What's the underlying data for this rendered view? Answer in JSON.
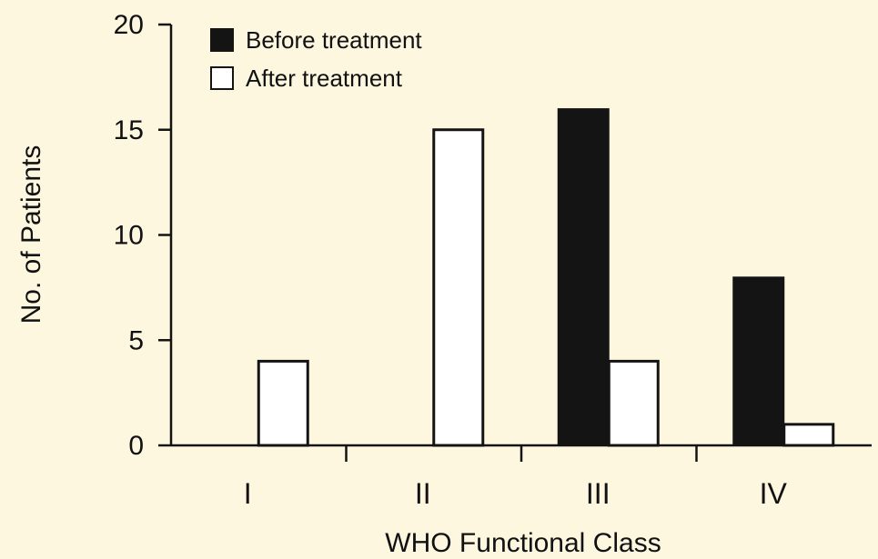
{
  "chart_data": {
    "type": "bar",
    "categories": [
      "I",
      "II",
      "III",
      "IV"
    ],
    "series": [
      {
        "name": "Before treatment",
        "values": [
          0,
          0,
          16,
          8
        ],
        "color": "#141414",
        "fill_style": "solid"
      },
      {
        "name": "After treatment",
        "values": [
          4,
          15,
          4,
          1
        ],
        "color": "#141414",
        "fill_style": "outline"
      }
    ],
    "title": "",
    "xlabel": "WHO Functional Class",
    "ylabel": "No. of Patients",
    "ylim": [
      0,
      20
    ],
    "yticks": [
      0,
      5,
      10,
      15,
      20
    ],
    "grid": false,
    "legend_position": "top-left"
  },
  "colors": {
    "background": "#fdf7e0",
    "ink": "#141414",
    "outline_fill": "#ffffff"
  }
}
